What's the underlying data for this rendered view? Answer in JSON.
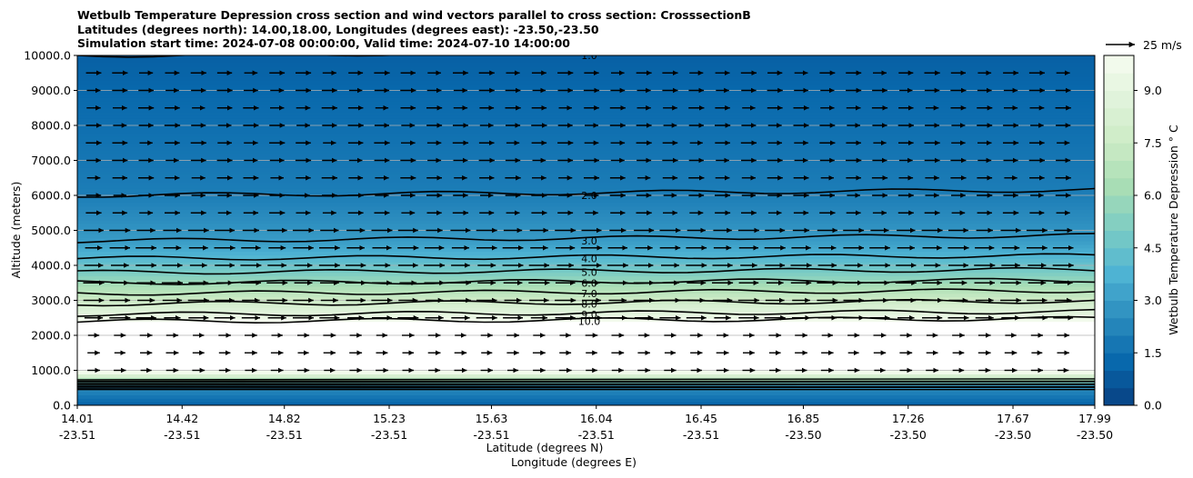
{
  "chart_data": {
    "type": "contour",
    "title": "Wetbulb Temperature Depression cross section and wind vectors parallel to cross section: CrosssectionB",
    "subtitle_1": "Latitudes (degrees north): 14.00,18.00, Longitudes (degrees east): -23.50,-23.50",
    "subtitle_2": "Simulation start time: 2024-07-08 00:00:00, Valid time: 2024-07-10 14:00:00",
    "ylabel": "Altitude (meters)",
    "xlabel_1": "Latitude (degrees N)",
    "xlabel_2": "Longitude (degrees E)",
    "ylim": [
      0,
      10000
    ],
    "y_ticks": [
      "0.0",
      "1000.0",
      "2000.0",
      "3000.0",
      "4000.0",
      "5000.0",
      "6000.0",
      "7000.0",
      "8000.0",
      "9000.0",
      "10000.0"
    ],
    "x_ticks": [
      {
        "lat": "14.01",
        "lon": "-23.51"
      },
      {
        "lat": "14.42",
        "lon": "-23.51"
      },
      {
        "lat": "14.82",
        "lon": "-23.51"
      },
      {
        "lat": "15.23",
        "lon": "-23.51"
      },
      {
        "lat": "15.63",
        "lon": "-23.51"
      },
      {
        "lat": "16.04",
        "lon": "-23.51"
      },
      {
        "lat": "16.45",
        "lon": "-23.51"
      },
      {
        "lat": "16.85",
        "lon": "-23.50"
      },
      {
        "lat": "17.26",
        "lon": "-23.50"
      },
      {
        "lat": "17.67",
        "lon": "-23.50"
      },
      {
        "lat": "17.99",
        "lon": "-23.50"
      }
    ],
    "grid": "horizontal",
    "colorbar": {
      "label": "Wetbulb Temperature Depression $^\\circ$C",
      "display_label": "Wetbulb Temperature Depression ° C",
      "range": [
        0,
        10
      ],
      "ticks": [
        "0.0",
        "1.5",
        "3.0",
        "4.5",
        "6.0",
        "7.5",
        "9.0"
      ],
      "colormap": "GnBu_r",
      "color_low": "#084081",
      "color_high": "#f7fcf0"
    },
    "quiver_key": {
      "label": "25 m/s"
    },
    "contour_levels": [
      1.0,
      2.0,
      3.0,
      4.0,
      5.0,
      6.0,
      7.0,
      8.0,
      9.0,
      10.0
    ],
    "contour_labels_shown": [
      "1.0",
      "2.0",
      "3.0",
      "4.0",
      "5.0",
      "6.0",
      "7.0",
      "8.0",
      "9.0",
      "10.0"
    ],
    "layer_profile_note_free": true,
    "profile": [
      {
        "alt": 0,
        "value": 1.0
      },
      {
        "alt": 500,
        "value": 2.5
      },
      {
        "alt": 1000,
        "value": 10.5
      },
      {
        "alt": 2000,
        "value": 10.5
      },
      {
        "alt": 2400,
        "value": 10.0
      },
      {
        "alt": 2600,
        "value": 9.0
      },
      {
        "alt": 2900,
        "value": 8.0
      },
      {
        "alt": 3200,
        "value": 7.0
      },
      {
        "alt": 3500,
        "value": 6.0
      },
      {
        "alt": 3800,
        "value": 5.0
      },
      {
        "alt": 4200,
        "value": 4.0
      },
      {
        "alt": 4700,
        "value": 3.0
      },
      {
        "alt": 6000,
        "value": 2.0
      },
      {
        "alt": 8000,
        "value": 1.5
      },
      {
        "alt": 10000,
        "value": 1.0
      }
    ]
  }
}
